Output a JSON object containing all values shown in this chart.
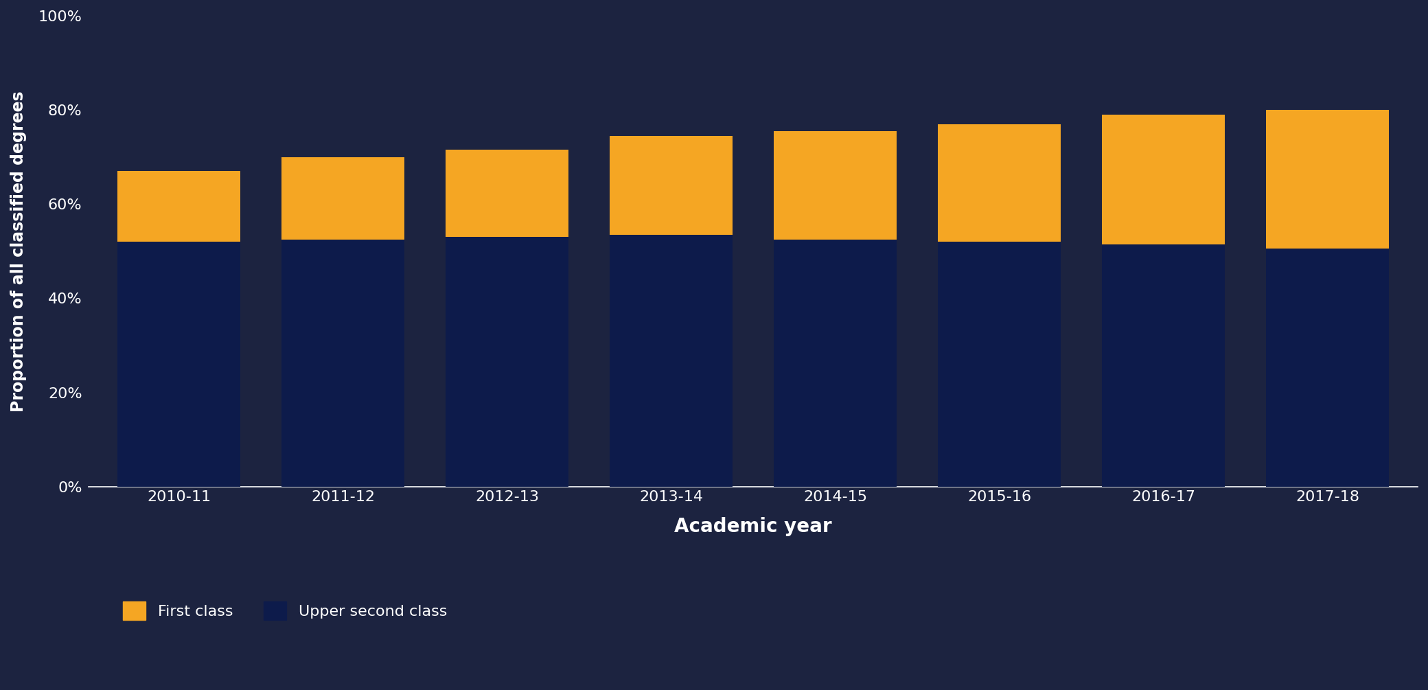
{
  "categories": [
    "2010-11",
    "2011-12",
    "2012-13",
    "2013-14",
    "2014-15",
    "2015-16",
    "2016-17",
    "2017-18"
  ],
  "upper_second": [
    52,
    52.5,
    53,
    53.5,
    52.5,
    52,
    51.5,
    50.5
  ],
  "first_class": [
    15,
    17.5,
    18.5,
    21,
    23,
    25,
    27.5,
    29.5
  ],
  "upper_second_color": "#0d1b4b",
  "first_class_color": "#f5a623",
  "background_color": "#1c2340",
  "ylabel": "Proportion of all classified degrees",
  "xlabel": "Academic year",
  "ylim": [
    0,
    100
  ],
  "yticks": [
    0,
    20,
    40,
    60,
    80,
    100
  ],
  "ytick_labels": [
    "0%",
    "20%",
    "40%",
    "60%",
    "80%",
    "100%"
  ],
  "legend_first_class": "First class",
  "legend_upper_second": "Upper second class",
  "bar_width": 0.75,
  "ylabel_fontsize": 17,
  "xlabel_fontsize": 20,
  "tick_fontsize": 16,
  "legend_fontsize": 16,
  "text_color": "#1a2a6c",
  "spine_color": "#1a2a6c",
  "fig_bg": "#f5f5f5"
}
